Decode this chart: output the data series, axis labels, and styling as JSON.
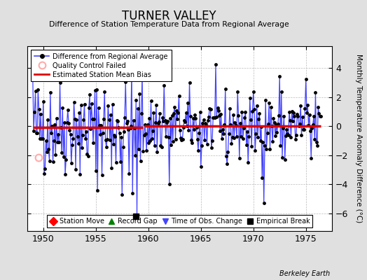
{
  "title": "TURNER VALLEY",
  "subtitle": "Difference of Station Temperature Data from Regional Average",
  "ylabel": "Monthly Temperature Anomaly Difference (°C)",
  "credit": "Berkeley Earth",
  "xlim": [
    1948.5,
    1977.5
  ],
  "ylim": [
    -7.2,
    5.5
  ],
  "yticks": [
    -6,
    -4,
    -2,
    0,
    2,
    4
  ],
  "xticks": [
    1950,
    1955,
    1960,
    1965,
    1970,
    1975
  ],
  "bg_color": "#e0e0e0",
  "bias_level_1": -0.08,
  "bias_level_2": 0.02,
  "bias_break_year": 1959.5,
  "empirical_break_x": 1958.83,
  "empirical_break_y": -6.2,
  "qc_fail_x": 1949.58,
  "qc_fail_y": -2.15,
  "seed": 42,
  "line_color": "#4444ff",
  "dot_color": "#000000",
  "red_color": "#dd0000",
  "qc_color": "#ffaaaa"
}
